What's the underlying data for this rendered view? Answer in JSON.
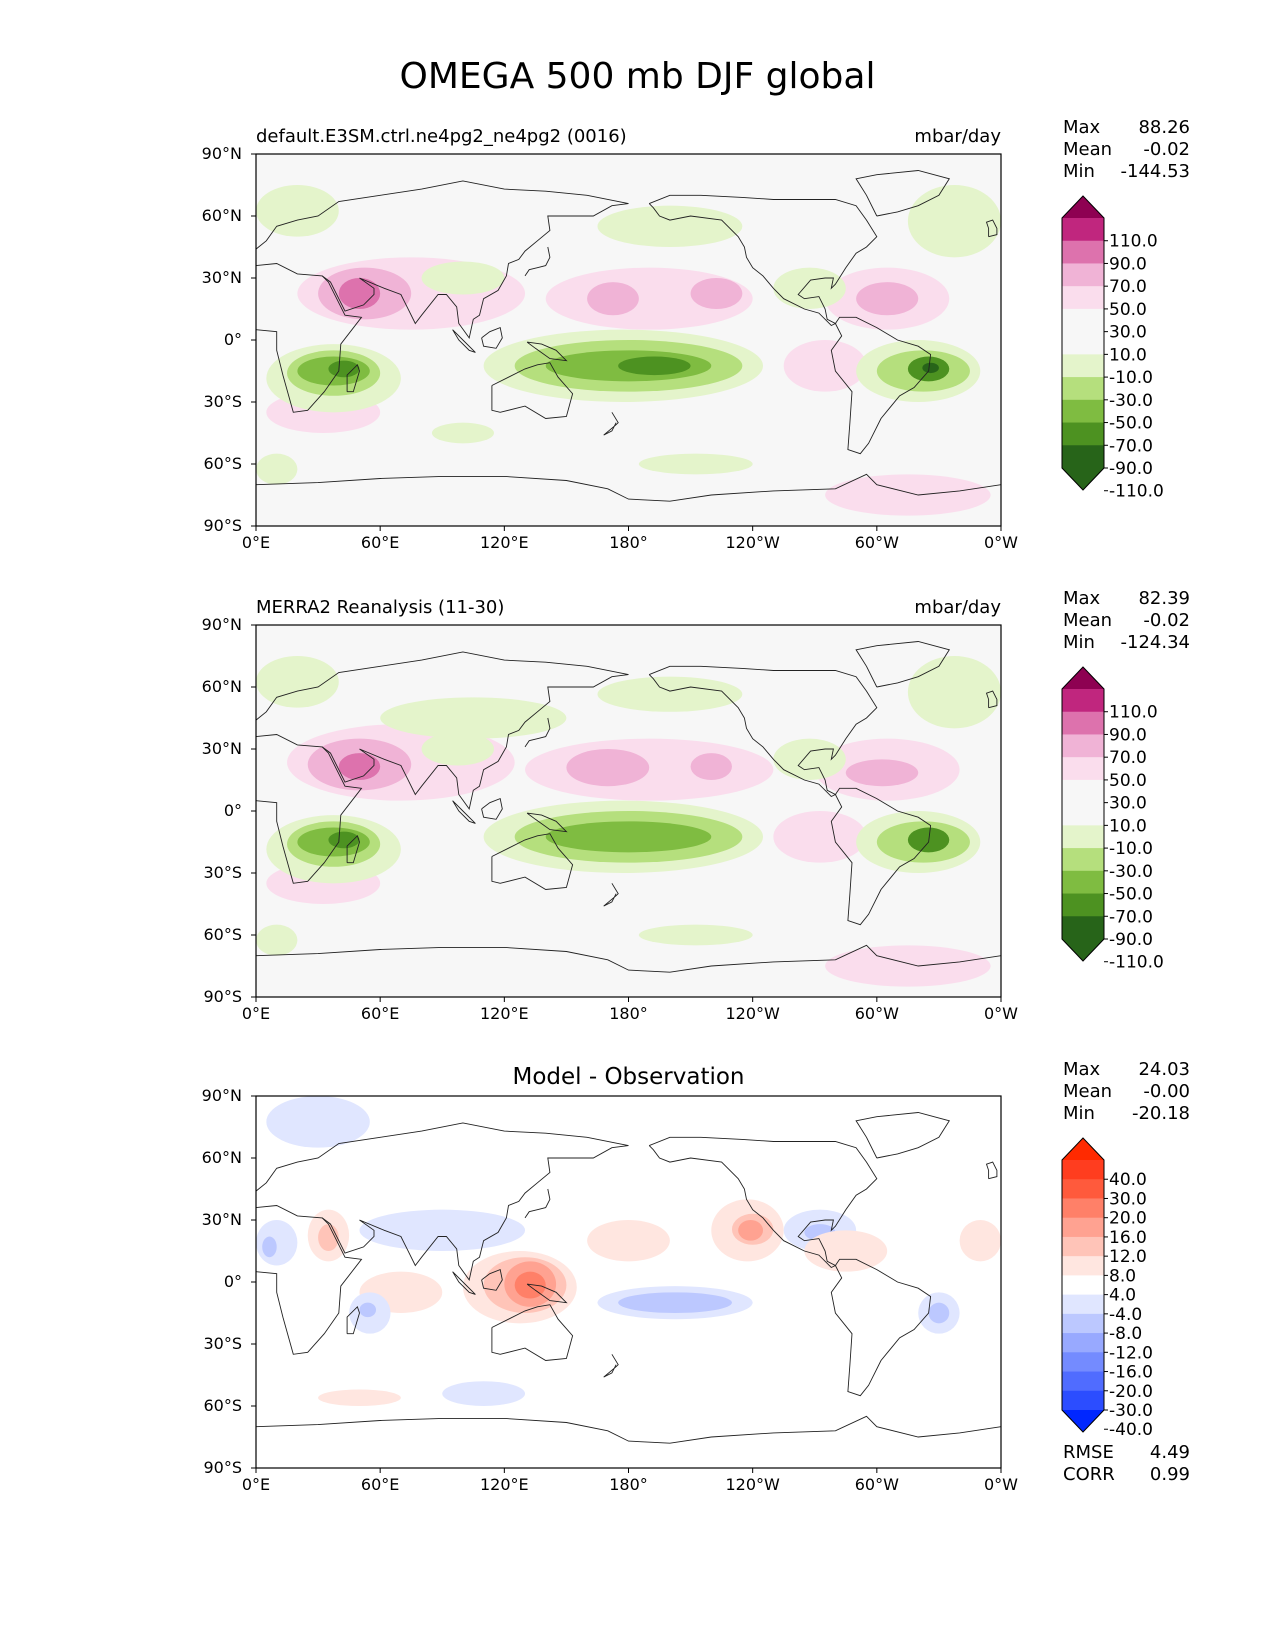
{
  "figure": {
    "title": "OMEGA 500 mb DJF global"
  },
  "x_ticks": [
    "0°E",
    "60°E",
    "120°E",
    "180°",
    "120°W",
    "60°W",
    "0°W"
  ],
  "y_ticks": [
    "90°N",
    "60°N",
    "30°N",
    "0°",
    "30°S",
    "60°S",
    "90°S"
  ],
  "panels": [
    {
      "id": "model",
      "left_title": "default.E3SM.ctrl.ne4pg2_ne4pg2 (0016)",
      "center_title": "",
      "units": "mbar/day",
      "stats": [
        {
          "label": "Max",
          "value": "88.26"
        },
        {
          "label": "Mean",
          "value": "-0.02"
        },
        {
          "label": "Min",
          "value": "-144.53"
        }
      ],
      "colorbar": {
        "labels": [
          "110.0",
          "90.0",
          "70.0",
          "50.0",
          "30.0",
          "10.0",
          "-10.0",
          "-30.0",
          "-50.0",
          "-70.0",
          "-90.0",
          "-110.0"
        ],
        "colors": [
          "#8e0152",
          "#c0267e",
          "#dd72ad",
          "#f0b3d6",
          "#fadded",
          "#f7f7f7",
          "#f7f7f7",
          "#e4f4cb",
          "#b5df7d",
          "#7fbc41",
          "#4d9221",
          "#276419",
          "#276419"
        ]
      },
      "bottom_stats": []
    },
    {
      "id": "obs",
      "left_title": "MERRA2 Reanalysis (11-30)",
      "center_title": "",
      "units": "mbar/day",
      "stats": [
        {
          "label": "Max",
          "value": "82.39"
        },
        {
          "label": "Mean",
          "value": "-0.02"
        },
        {
          "label": "Min",
          "value": "-124.34"
        }
      ],
      "colorbar": {
        "labels": [
          "110.0",
          "90.0",
          "70.0",
          "50.0",
          "30.0",
          "10.0",
          "-10.0",
          "-30.0",
          "-50.0",
          "-70.0",
          "-90.0",
          "-110.0"
        ],
        "colors": [
          "#8e0152",
          "#c0267e",
          "#dd72ad",
          "#f0b3d6",
          "#fadded",
          "#f7f7f7",
          "#f7f7f7",
          "#e4f4cb",
          "#b5df7d",
          "#7fbc41",
          "#4d9221",
          "#276419",
          "#276419"
        ]
      },
      "bottom_stats": []
    },
    {
      "id": "diff",
      "left_title": "",
      "center_title": "Model - Observation",
      "units": "",
      "stats": [
        {
          "label": "Max",
          "value": "24.03"
        },
        {
          "label": "Mean",
          "value": "-0.00"
        },
        {
          "label": "Min",
          "value": "-20.18"
        }
      ],
      "colorbar": {
        "labels": [
          "40.0",
          "30.0",
          "20.0",
          "16.0",
          "12.0",
          "8.0",
          "4.0",
          "-4.0",
          "-8.0",
          "-12.0",
          "-16.0",
          "-20.0",
          "-30.0",
          "-40.0"
        ],
        "colors": [
          "#ff2a00",
          "#ff3d1f",
          "#ff5a3c",
          "#ff8068",
          "#ffa291",
          "#ffc4b8",
          "#ffe6e0",
          "#ffffff",
          "#e0e6ff",
          "#bcc8ff",
          "#98a9ff",
          "#748bff",
          "#506cff",
          "#2c4dff",
          "#0027ff"
        ]
      },
      "bottom_stats": [
        {
          "label": "RMSE",
          "value": "4.49"
        },
        {
          "label": "CORR",
          "value": "0.99"
        }
      ]
    }
  ],
  "blobs": {
    "model": [
      {
        "c": "#fadded",
        "lon": [
          20,
          130
        ],
        "lat": [
          5,
          40
        ]
      },
      {
        "c": "#f0b3d6",
        "lon": [
          30,
          75
        ],
        "lat": [
          10,
          35
        ]
      },
      {
        "c": "#dd72ad",
        "lon": [
          40,
          60
        ],
        "lat": [
          15,
          30
        ]
      },
      {
        "c": "#fadded",
        "lon": [
          140,
          240
        ],
        "lat": [
          5,
          35
        ]
      },
      {
        "c": "#f0b3d6",
        "lon": [
          160,
          185
        ],
        "lat": [
          12,
          28
        ]
      },
      {
        "c": "#f0b3d6",
        "lon": [
          210,
          235
        ],
        "lat": [
          15,
          30
        ]
      },
      {
        "c": "#fadded",
        "lon": [
          275,
          335
        ],
        "lat": [
          5,
          35
        ]
      },
      {
        "c": "#f0b3d6",
        "lon": [
          290,
          320
        ],
        "lat": [
          12,
          28
        ]
      },
      {
        "c": "#fadded",
        "lon": [
          5,
          60
        ],
        "lat": [
          -45,
          -25
        ]
      },
      {
        "c": "#fadded",
        "lon": [
          255,
          295
        ],
        "lat": [
          -25,
          0
        ]
      },
      {
        "c": "#e4f4cb",
        "lon": [
          5,
          70
        ],
        "lat": [
          -35,
          -2
        ]
      },
      {
        "c": "#b5df7d",
        "lon": [
          15,
          60
        ],
        "lat": [
          -27,
          -5
        ]
      },
      {
        "c": "#7fbc41",
        "lon": [
          20,
          55
        ],
        "lat": [
          -22,
          -8
        ]
      },
      {
        "c": "#4d9221",
        "lon": [
          35,
          50
        ],
        "lat": [
          -18,
          -10
        ]
      },
      {
        "c": "#e4f4cb",
        "lon": [
          110,
          245
        ],
        "lat": [
          -30,
          5
        ]
      },
      {
        "c": "#b5df7d",
        "lon": [
          125,
          235
        ],
        "lat": [
          -25,
          0
        ]
      },
      {
        "c": "#7fbc41",
        "lon": [
          140,
          220
        ],
        "lat": [
          -20,
          -5
        ]
      },
      {
        "c": "#4d9221",
        "lon": [
          175,
          210
        ],
        "lat": [
          -17,
          -8
        ]
      },
      {
        "c": "#e4f4cb",
        "lon": [
          290,
          350
        ],
        "lat": [
          -30,
          0
        ]
      },
      {
        "c": "#b5df7d",
        "lon": [
          300,
          345
        ],
        "lat": [
          -25,
          -5
        ]
      },
      {
        "c": "#4d9221",
        "lon": [
          315,
          335
        ],
        "lat": [
          -20,
          -8
        ]
      },
      {
        "c": "#276419",
        "lon": [
          322,
          330
        ],
        "lat": [
          -16,
          -11
        ]
      },
      {
        "c": "#e4f4cb",
        "lon": [
          80,
          120
        ],
        "lat": [
          22,
          38
        ]
      },
      {
        "c": "#e4f4cb",
        "lon": [
          250,
          285
        ],
        "lat": [
          15,
          35
        ]
      },
      {
        "c": "#e4f4cb",
        "lon": [
          0,
          40
        ],
        "lat": [
          50,
          75
        ]
      },
      {
        "c": "#e4f4cb",
        "lon": [
          165,
          235
        ],
        "lat": [
          45,
          65
        ]
      },
      {
        "c": "#e4f4cb",
        "lon": [
          315,
          360
        ],
        "lat": [
          40,
          75
        ]
      },
      {
        "c": "#e4f4cb",
        "lon": [
          0,
          20
        ],
        "lat": [
          -70,
          -55
        ]
      },
      {
        "c": "#e4f4cb",
        "lon": [
          85,
          115
        ],
        "lat": [
          -50,
          -40
        ]
      },
      {
        "c": "#e4f4cb",
        "lon": [
          185,
          240
        ],
        "lat": [
          -65,
          -55
        ]
      },
      {
        "c": "#fadded",
        "lon": [
          275,
          355
        ],
        "lat": [
          -85,
          -65
        ]
      }
    ],
    "obs": [
      {
        "c": "#fadded",
        "lon": [
          15,
          125
        ],
        "lat": [
          5,
          42
        ]
      },
      {
        "c": "#f0b3d6",
        "lon": [
          25,
          75
        ],
        "lat": [
          10,
          35
        ]
      },
      {
        "c": "#dd72ad",
        "lon": [
          40,
          60
        ],
        "lat": [
          15,
          28
        ]
      },
      {
        "c": "#fadded",
        "lon": [
          130,
          250
        ],
        "lat": [
          5,
          35
        ]
      },
      {
        "c": "#f0b3d6",
        "lon": [
          150,
          190
        ],
        "lat": [
          12,
          30
        ]
      },
      {
        "c": "#f0b3d6",
        "lon": [
          210,
          230
        ],
        "lat": [
          15,
          28
        ]
      },
      {
        "c": "#fadded",
        "lon": [
          270,
          340
        ],
        "lat": [
          5,
          35
        ]
      },
      {
        "c": "#f0b3d6",
        "lon": [
          285,
          320
        ],
        "lat": [
          12,
          25
        ]
      },
      {
        "c": "#fadded",
        "lon": [
          5,
          60
        ],
        "lat": [
          -45,
          -25
        ]
      },
      {
        "c": "#fadded",
        "lon": [
          250,
          295
        ],
        "lat": [
          -25,
          0
        ]
      },
      {
        "c": "#e4f4cb",
        "lon": [
          5,
          70
        ],
        "lat": [
          -35,
          -2
        ]
      },
      {
        "c": "#b5df7d",
        "lon": [
          15,
          60
        ],
        "lat": [
          -27,
          -5
        ]
      },
      {
        "c": "#7fbc41",
        "lon": [
          20,
          55
        ],
        "lat": [
          -22,
          -8
        ]
      },
      {
        "c": "#4d9221",
        "lon": [
          35,
          50
        ],
        "lat": [
          -18,
          -10
        ]
      },
      {
        "c": "#e4f4cb",
        "lon": [
          110,
          245
        ],
        "lat": [
          -30,
          5
        ]
      },
      {
        "c": "#b5df7d",
        "lon": [
          125,
          235
        ],
        "lat": [
          -25,
          0
        ]
      },
      {
        "c": "#7fbc41",
        "lon": [
          140,
          220
        ],
        "lat": [
          -20,
          -5
        ]
      },
      {
        "c": "#e4f4cb",
        "lon": [
          290,
          350
        ],
        "lat": [
          -30,
          0
        ]
      },
      {
        "c": "#b5df7d",
        "lon": [
          300,
          345
        ],
        "lat": [
          -25,
          -5
        ]
      },
      {
        "c": "#4d9221",
        "lon": [
          315,
          335
        ],
        "lat": [
          -20,
          -8
        ]
      },
      {
        "c": "#e4f4cb",
        "lon": [
          80,
          115
        ],
        "lat": [
          22,
          38
        ]
      },
      {
        "c": "#e4f4cb",
        "lon": [
          250,
          285
        ],
        "lat": [
          15,
          35
        ]
      },
      {
        "c": "#e4f4cb",
        "lon": [
          0,
          40
        ],
        "lat": [
          50,
          75
        ]
      },
      {
        "c": "#e4f4cb",
        "lon": [
          165,
          235
        ],
        "lat": [
          48,
          65
        ]
      },
      {
        "c": "#e4f4cb",
        "lon": [
          315,
          360
        ],
        "lat": [
          40,
          75
        ]
      },
      {
        "c": "#e4f4cb",
        "lon": [
          0,
          20
        ],
        "lat": [
          -70,
          -55
        ]
      },
      {
        "c": "#e4f4cb",
        "lon": [
          60,
          150
        ],
        "lat": [
          35,
          55
        ]
      },
      {
        "c": "#e4f4cb",
        "lon": [
          185,
          240
        ],
        "lat": [
          -65,
          -55
        ]
      },
      {
        "c": "#fadded",
        "lon": [
          275,
          355
        ],
        "lat": [
          -85,
          -65
        ]
      }
    ],
    "diff": [
      {
        "c": "#e0e6ff",
        "lon": [
          5,
          55
        ],
        "lat": [
          65,
          90
        ]
      },
      {
        "c": "#e0e6ff",
        "lon": [
          0,
          20
        ],
        "lat": [
          8,
          30
        ]
      },
      {
        "c": "#bcc8ff",
        "lon": [
          3,
          10
        ],
        "lat": [
          12,
          22
        ]
      },
      {
        "c": "#ffe6e0",
        "lon": [
          25,
          45
        ],
        "lat": [
          10,
          35
        ]
      },
      {
        "c": "#ffc4b8",
        "lon": [
          30,
          40
        ],
        "lat": [
          15,
          28
        ]
      },
      {
        "c": "#e0e6ff",
        "lon": [
          50,
          130
        ],
        "lat": [
          15,
          35
        ]
      },
      {
        "c": "#ffe6e0",
        "lon": [
          100,
          155
        ],
        "lat": [
          -20,
          15
        ]
      },
      {
        "c": "#ffc4b8",
        "lon": [
          110,
          150
        ],
        "lat": [
          -15,
          12
        ]
      },
      {
        "c": "#ffa291",
        "lon": [
          120,
          145
        ],
        "lat": [
          -12,
          10
        ]
      },
      {
        "c": "#ff8068",
        "lon": [
          125,
          140
        ],
        "lat": [
          -8,
          5
        ]
      },
      {
        "c": "#ffe6e0",
        "lon": [
          160,
          200
        ],
        "lat": [
          10,
          30
        ]
      },
      {
        "c": "#ffe6e0",
        "lon": [
          220,
          255
        ],
        "lat": [
          10,
          40
        ]
      },
      {
        "c": "#ffc4b8",
        "lon": [
          230,
          250
        ],
        "lat": [
          18,
          33
        ]
      },
      {
        "c": "#ffa291",
        "lon": [
          233,
          245
        ],
        "lat": [
          20,
          30
        ]
      },
      {
        "c": "#e0e6ff",
        "lon": [
          255,
          290
        ],
        "lat": [
          15,
          35
        ]
      },
      {
        "c": "#bcc8ff",
        "lon": [
          265,
          280
        ],
        "lat": [
          20,
          28
        ]
      },
      {
        "c": "#ffe6e0",
        "lon": [
          265,
          305
        ],
        "lat": [
          5,
          25
        ]
      },
      {
        "c": "#e0e6ff",
        "lon": [
          165,
          240
        ],
        "lat": [
          -18,
          -2
        ]
      },
      {
        "c": "#bcc8ff",
        "lon": [
          175,
          230
        ],
        "lat": [
          -15,
          -5
        ]
      },
      {
        "c": "#ffe6e0",
        "lon": [
          50,
          90
        ],
        "lat": [
          -15,
          5
        ]
      },
      {
        "c": "#e0e6ff",
        "lon": [
          45,
          65
        ],
        "lat": [
          -25,
          -5
        ]
      },
      {
        "c": "#bcc8ff",
        "lon": [
          50,
          58
        ],
        "lat": [
          -17,
          -10
        ]
      },
      {
        "c": "#e0e6ff",
        "lon": [
          320,
          340
        ],
        "lat": [
          -25,
          -5
        ]
      },
      {
        "c": "#bcc8ff",
        "lon": [
          325,
          335
        ],
        "lat": [
          -20,
          -10
        ]
      },
      {
        "c": "#e0e6ff",
        "lon": [
          90,
          130
        ],
        "lat": [
          -60,
          -48
        ]
      },
      {
        "c": "#ffe6e0",
        "lon": [
          30,
          70
        ],
        "lat": [
          -60,
          -52
        ]
      },
      {
        "c": "#ffe6e0",
        "lon": [
          340,
          360
        ],
        "lat": [
          10,
          30
        ]
      }
    ]
  }
}
